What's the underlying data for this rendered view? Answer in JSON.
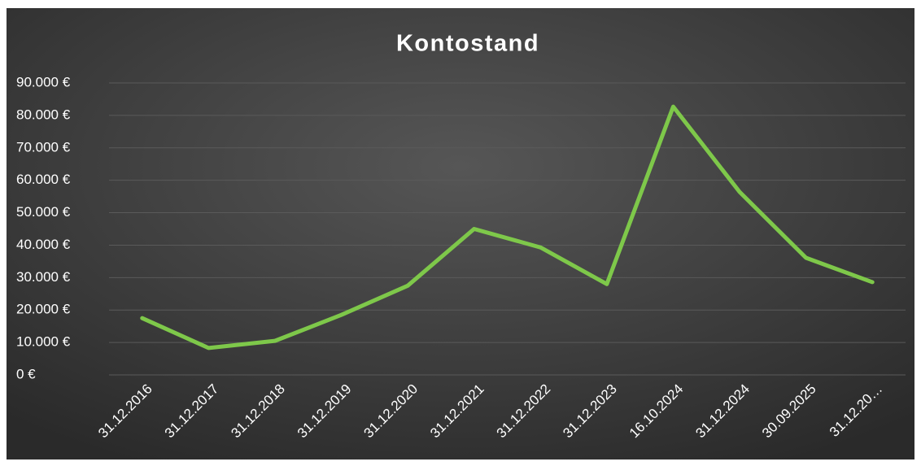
{
  "chart_data": {
    "type": "line",
    "title": "Kontostand",
    "categories": [
      "31.12.2016",
      "31.12.2017",
      "31.12.2018",
      "31.12.2019",
      "31.12.2020",
      "31.12.2021",
      "31.12.2022",
      "31.12.2023",
      "16.10.2024",
      "31.12.2024",
      "30.09.2025",
      "31.12.20…"
    ],
    "series": [
      {
        "name": "Kontostand",
        "color": "#7ec84a",
        "values": [
          17500,
          8300,
          10500,
          18500,
          27500,
          45000,
          39300,
          28000,
          82700,
          56400,
          36100,
          28600
        ]
      }
    ],
    "ylim": [
      0,
      90000
    ],
    "yticks": [
      {
        "value": 0,
        "label": "0 €"
      },
      {
        "value": 10000,
        "label": "10.000 €"
      },
      {
        "value": 20000,
        "label": "20.000 €"
      },
      {
        "value": 30000,
        "label": "30.000 €"
      },
      {
        "value": 40000,
        "label": "40.000 €"
      },
      {
        "value": 50000,
        "label": "50.000 €"
      },
      {
        "value": 60000,
        "label": "60.000 €"
      },
      {
        "value": 70000,
        "label": "70.000 €"
      },
      {
        "value": 80000,
        "label": "80.000 €"
      },
      {
        "value": 90000,
        "label": "90.000 €"
      }
    ],
    "grid": true
  }
}
